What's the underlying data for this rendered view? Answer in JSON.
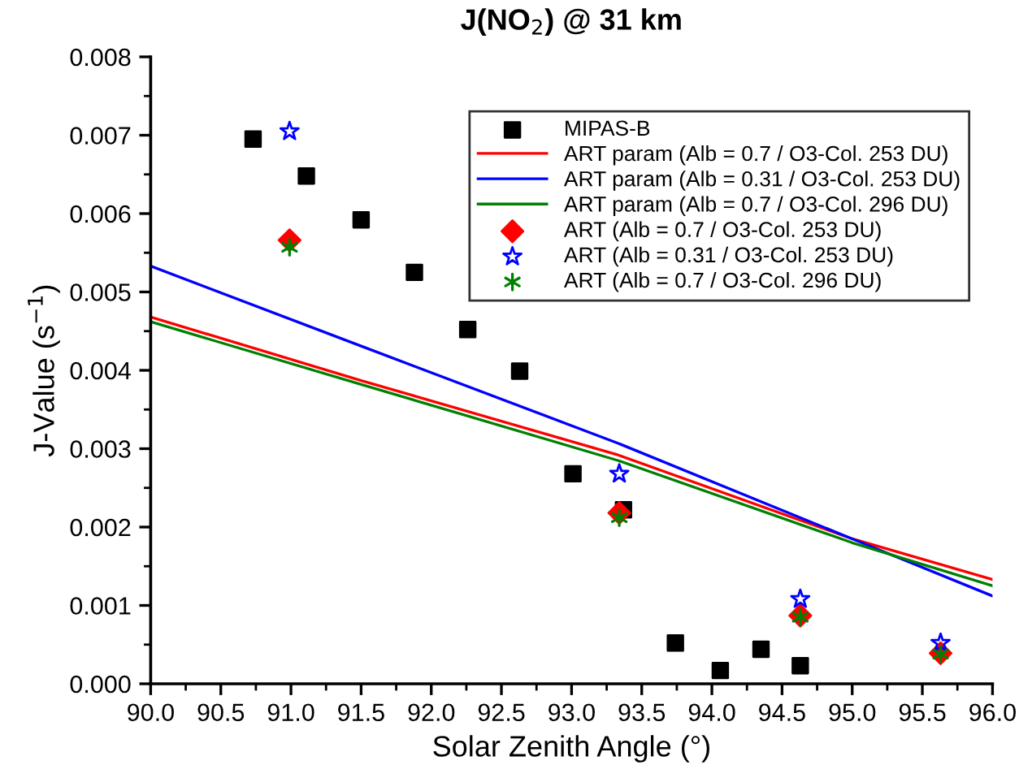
{
  "chart_data": {
    "type": "scatter",
    "title": "J(NO$_{2}$) @ 31 km",
    "xlabel": "Solar Zenith Angle (°)",
    "ylabel": "J-Value (s$^{−1}$)",
    "xlim": [
      90.0,
      96.0
    ],
    "xticks": [
      {
        "value": 90,
        "label": "90.0"
      },
      {
        "value": 90.5,
        "label": "90.5"
      },
      {
        "value": 91,
        "label": "91.0"
      },
      {
        "value": 91.5,
        "label": "91.5"
      },
      {
        "value": 92,
        "label": "92.0"
      },
      {
        "value": 92.5,
        "label": "92.5"
      },
      {
        "value": 93,
        "label": "93.0"
      },
      {
        "value": 93.5,
        "label": "93.5"
      },
      {
        "value": 94,
        "label": "94.0"
      },
      {
        "value": 94.5,
        "label": "94.5"
      },
      {
        "value": 95,
        "label": "95.0"
      },
      {
        "value": 95.5,
        "label": "95.5"
      },
      {
        "value": 96,
        "label": "96.0"
      }
    ],
    "ylim": [
      0,
      0.008
    ],
    "yticks": [
      {
        "value": 0,
        "label": "0.000"
      },
      {
        "value": 0.001,
        "label": "0.001"
      },
      {
        "value": 0.002,
        "label": "0.002"
      },
      {
        "value": 0.003,
        "label": "0.003"
      },
      {
        "value": 0.004,
        "label": "0.004"
      },
      {
        "value": 0.005,
        "label": "0.005"
      },
      {
        "value": 0.006,
        "label": "0.006"
      },
      {
        "value": 0.007,
        "label": "0.007"
      },
      {
        "value": 0.008,
        "label": "0.008"
      }
    ],
    "legend": "top right",
    "grid": false,
    "series": [
      {
        "name": "MIPAS-B",
        "marker": "square",
        "color": "#000000",
        "x": [
          90.73,
          91.11,
          91.5,
          91.88,
          92.26,
          92.63,
          93.01,
          93.37,
          93.74,
          94.06,
          94.35,
          94.63
        ],
        "values": [
          0.00695,
          0.00648,
          0.00592,
          0.00525,
          0.00452,
          0.00399,
          0.00268,
          0.00222,
          0.00052,
          0.00017,
          0.00044,
          0.00023
        ]
      },
      {
        "name": "ART param (Alb = 0.7 / O3-Col. 253 DU)",
        "type": "line",
        "color": "#ff0000",
        "x": [
          90,
          91.5,
          93.33,
          95,
          96
        ],
        "values": [
          0.00468,
          0.00387,
          0.00292,
          0.00185,
          0.00133
        ]
      },
      {
        "name": "ART param (Alb = 0.31 / O3-Col. 253 DU)",
        "type": "line",
        "color": "#0000ff",
        "x": [
          90,
          91.5,
          93.33,
          95,
          96
        ],
        "values": [
          0.00533,
          0.00431,
          0.00307,
          0.00185,
          0.00112
        ]
      },
      {
        "name": "ART param (Alb = 0.7 / O3-Col. 296 DU)",
        "type": "line",
        "color": "#008000",
        "x": [
          90,
          91.5,
          93.33,
          95,
          96
        ],
        "values": [
          0.00462,
          0.00382,
          0.00285,
          0.0018,
          0.00125
        ]
      },
      {
        "name": "ART (Alb = 0.7 / O3-Col. 253 DU)",
        "marker": "diamond",
        "color": "#ff0000",
        "x": [
          90.99,
          93.34,
          94.63,
          95.63
        ],
        "values": [
          0.00566,
          0.00218,
          0.00087,
          0.00039
        ]
      },
      {
        "name": "ART (Alb = 0.31 / O3-Col. 253 DU)",
        "marker": "star",
        "color": "#0000ff",
        "x": [
          90.99,
          93.34,
          94.63,
          95.63
        ],
        "values": [
          0.00705,
          0.00268,
          0.00108,
          0.00052
        ]
      },
      {
        "name": "ART (Alb = 0.7 / O3-Col. 296 DU)",
        "marker": "cross",
        "color": "#008000",
        "x": [
          90.99,
          93.34,
          94.63,
          95.63
        ],
        "values": [
          0.00557,
          0.00212,
          0.00085,
          0.00038
        ]
      }
    ]
  }
}
